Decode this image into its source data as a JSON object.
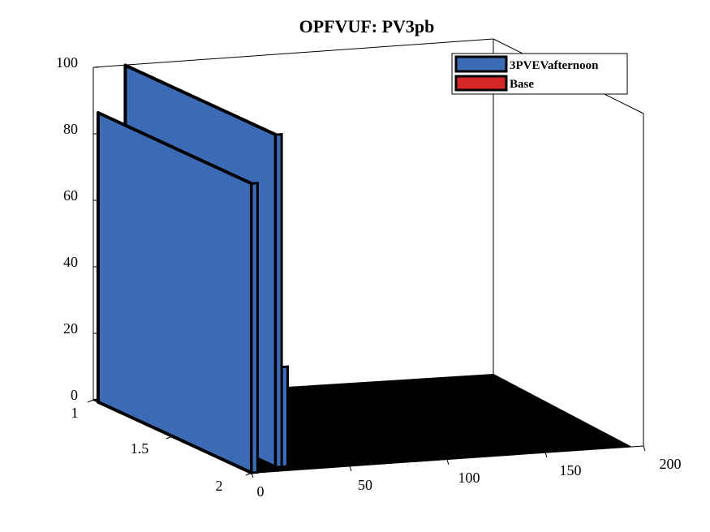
{
  "chart_data": {
    "type": "bar",
    "title": "OPFVUF: PV3pb",
    "xlabel": "",
    "ylabel": "",
    "zlabel": "",
    "x_ticks": [
      "0",
      "50",
      "100",
      "150",
      "200"
    ],
    "y_ticks": [
      "1",
      "1.5",
      "2"
    ],
    "z_ticks": [
      "0",
      "20",
      "40",
      "60",
      "80",
      "100"
    ],
    "xlim": [
      0,
      200
    ],
    "ylim": [
      1,
      2
    ],
    "zlim": [
      0,
      100
    ],
    "grid": false,
    "legend_position": "top-right",
    "series": [
      {
        "name": "3PVEVafternoon",
        "color": "#3b6bb5",
        "values": [
          {
            "x": 0,
            "y": 2,
            "z": 87
          },
          {
            "x": 16,
            "y": 1,
            "z": 100
          },
          {
            "x": 19,
            "y": 1,
            "z": 30
          }
        ]
      },
      {
        "name": "Base",
        "color": "#d62728",
        "values": []
      }
    ]
  }
}
